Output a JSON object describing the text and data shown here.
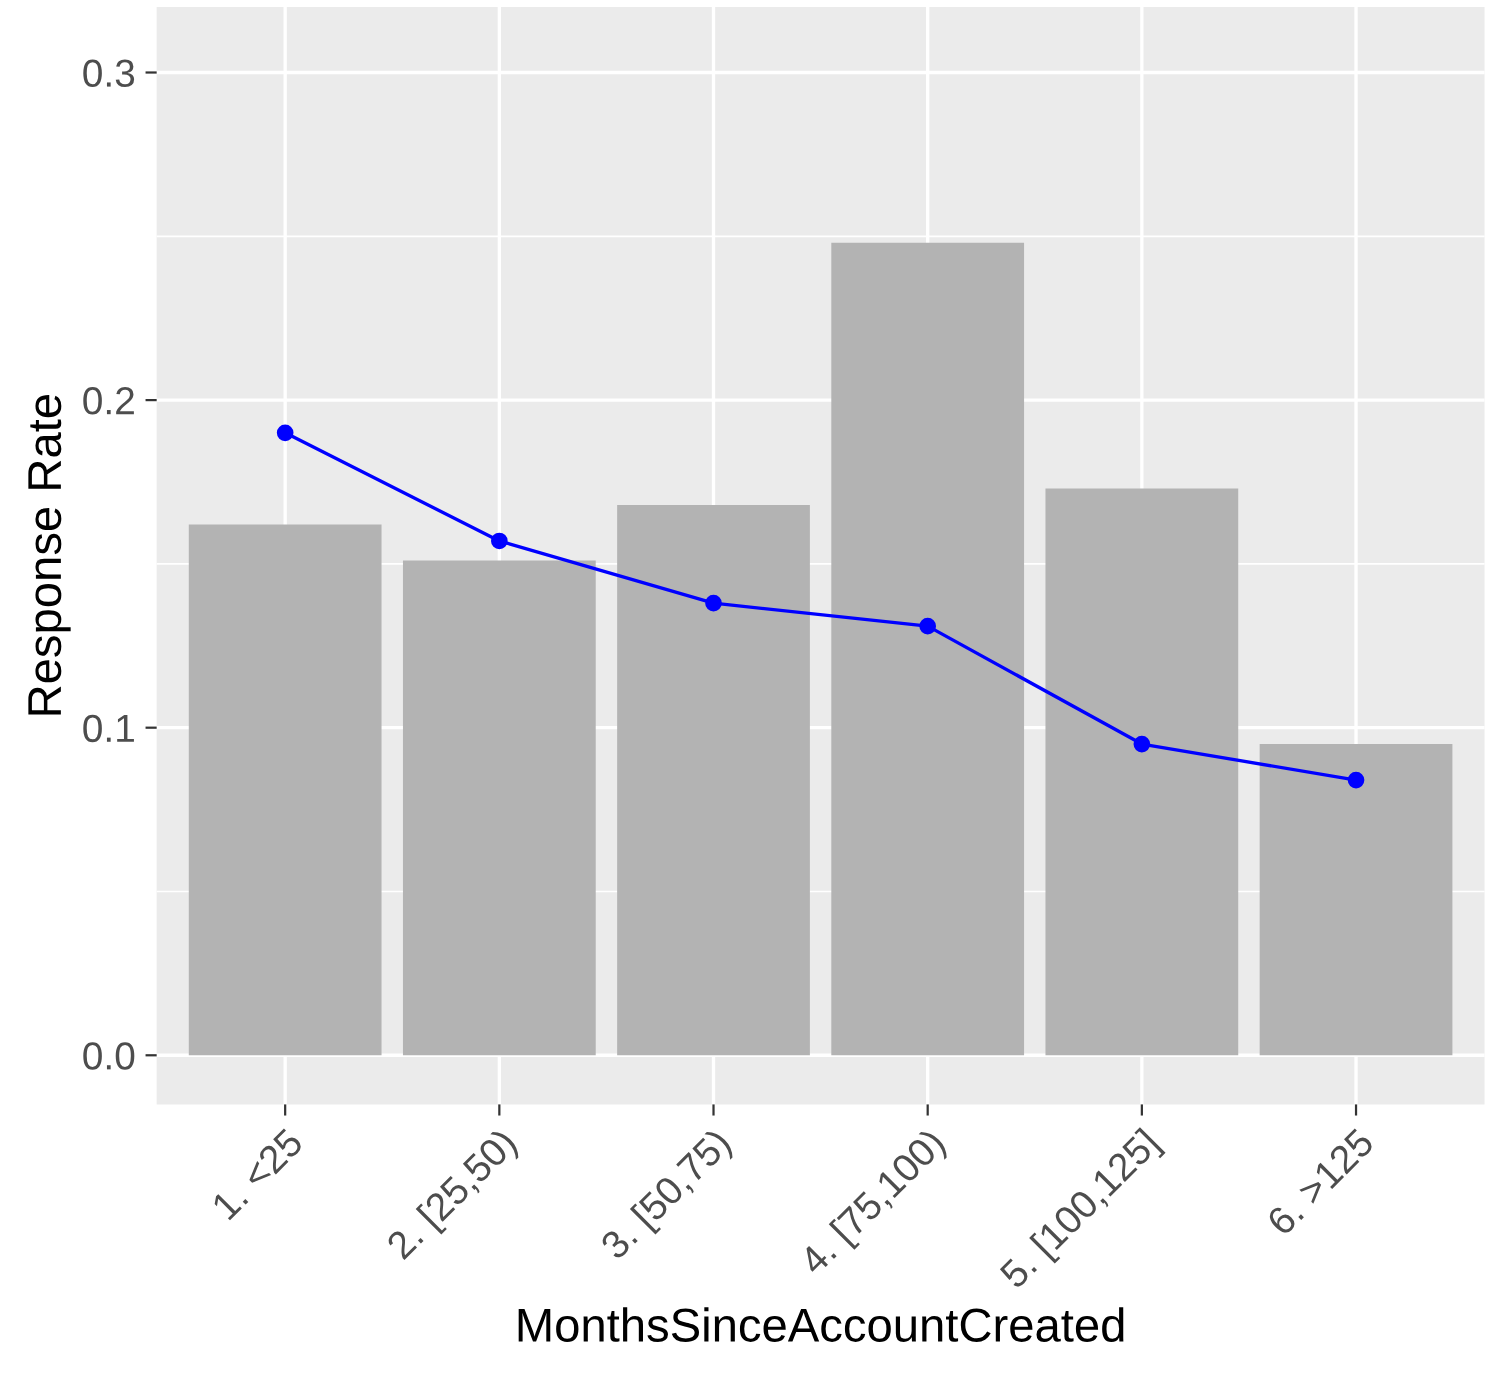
{
  "chart_data": {
    "type": "bar",
    "xlabel": "MonthsSinceAccountCreated",
    "ylabel": "Response Rate",
    "categories": [
      "1. <25",
      "2. [25,50)",
      "3. [50,75)",
      "4. [75,100)",
      "5. [100,125]",
      "6. >125"
    ],
    "series": [
      {
        "color": "#b3b3b3",
        "values": [
          0.162,
          0.151,
          0.168,
          0.248,
          0.173,
          0.095
        ]
      },
      {
        "type": "line",
        "color": "#0000ff",
        "marker": "circle",
        "values": [
          0.19,
          0.157,
          0.138,
          0.131,
          0.095,
          0.084
        ]
      }
    ],
    "ylim": [
      -0.015,
      0.32
    ],
    "yticks": [
      {
        "value": 0.0,
        "label": "0.0"
      },
      0.1,
      0.2,
      0.3
    ],
    "grid": true
  }
}
